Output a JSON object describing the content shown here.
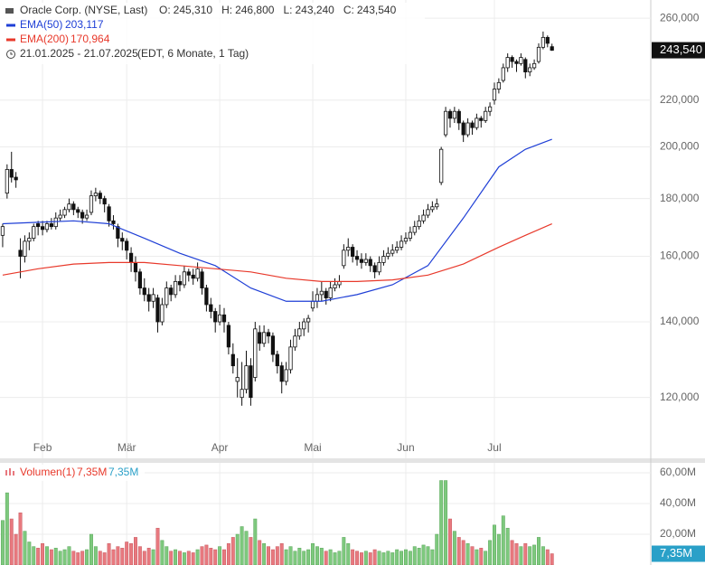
{
  "chart_data": {
    "type": "candlestick",
    "title": "Oracle Corp. (NYSE, Last)",
    "header_values": [
      {
        "key": "O:",
        "label": "245,310"
      },
      {
        "key": "H:",
        "label": "246,800"
      },
      {
        "key": "L:",
        "label": "243,240"
      },
      {
        "key": "C:",
        "label": "243,540"
      }
    ],
    "range": "21.01.2025 - 21.07.2025",
    "range_note": "(EDT, 6 Monate, 1 Tag)",
    "log_scale": true,
    "grid": true,
    "up_color": "#ffffff",
    "down_color": "#111111",
    "xlim": [
      -0.6,
      146.3
    ],
    "xticks": [
      {
        "value": 9,
        "label": "Feb"
      },
      {
        "value": 28,
        "label": "Mär"
      },
      {
        "value": 49,
        "label": "Apr"
      },
      {
        "value": 70,
        "label": "Mai"
      },
      {
        "value": 91,
        "label": "Jun"
      },
      {
        "value": 111,
        "label": "Jul"
      }
    ],
    "ylim": [
      106000,
      269800
    ],
    "yticks": [
      {
        "value": 120000,
        "label": "120,000"
      },
      {
        "value": 140000,
        "label": "140,000"
      },
      {
        "value": 160000,
        "label": "160,000"
      },
      {
        "value": 180000,
        "label": "180,000"
      },
      {
        "value": 200000,
        "label": "200,000"
      },
      {
        "value": 220000,
        "label": "220,000"
      },
      {
        "value": 260000,
        "label": "260,000"
      }
    ],
    "last_label": "243,540",
    "open": [
      167000,
      182000,
      191000,
      188000,
      162000,
      160000,
      165000,
      166000,
      171000,
      170000,
      169000,
      171000,
      170000,
      173000,
      174000,
      176000,
      178000,
      176000,
      175000,
      173000,
      175000,
      181000,
      182000,
      180000,
      177000,
      172000,
      170000,
      166000,
      165000,
      161000,
      158000,
      155000,
      150000,
      148000,
      146000,
      147000,
      140000,
      145000,
      150000,
      148000,
      152000,
      151000,
      155000,
      154000,
      153000,
      155000,
      150000,
      145000,
      143000,
      140000,
      142000,
      139000,
      131000,
      124000,
      120000,
      122000,
      128000,
      125000,
      137000,
      134000,
      137000,
      136000,
      131000,
      128000,
      124000,
      127000,
      133000,
      136000,
      138000,
      140000,
      144000,
      146000,
      148000,
      149000,
      147000,
      150000,
      151000,
      157000,
      162000,
      163000,
      160000,
      159000,
      158000,
      159000,
      157000,
      155000,
      158000,
      160000,
      161000,
      162000,
      163000,
      165000,
      166000,
      168000,
      170000,
      172000,
      174000,
      176000,
      177000,
      186000,
      205000,
      215000,
      212000,
      215000,
      210000,
      205000,
      210000,
      208000,
      212000,
      211000,
      215000,
      220000,
      225000,
      229000,
      235000,
      240000,
      238000,
      237000,
      239000,
      233000,
      235000,
      238000,
      245000,
      250000,
      245310
    ],
    "high": [
      171000,
      193000,
      198000,
      190000,
      166000,
      167000,
      168000,
      171000,
      172000,
      172000,
      172000,
      173000,
      175000,
      176000,
      177000,
      180000,
      179000,
      177000,
      176000,
      176000,
      183000,
      184000,
      183000,
      181000,
      178000,
      174000,
      171000,
      168000,
      166000,
      163000,
      160000,
      156000,
      153000,
      150000,
      150000,
      148000,
      147000,
      152000,
      151000,
      154000,
      154000,
      157000,
      156000,
      156000,
      158000,
      156000,
      151000,
      147000,
      144000,
      145000,
      144000,
      140000,
      134000,
      130000,
      129000,
      132000,
      130000,
      140000,
      139000,
      139000,
      138000,
      137000,
      132000,
      129000,
      129000,
      135000,
      138000,
      140000,
      141000,
      142000,
      149000,
      150000,
      152000,
      150000,
      152000,
      153000,
      154000,
      164000,
      166000,
      164000,
      162000,
      161000,
      161000,
      160000,
      158000,
      160000,
      162000,
      163000,
      164000,
      165000,
      167000,
      168000,
      170000,
      172000,
      174000,
      176000,
      178000,
      179000,
      180000,
      200000,
      217000,
      216000,
      217000,
      216000,
      211000,
      212000,
      211000,
      214000,
      213000,
      217000,
      219000,
      228000,
      230000,
      237000,
      242000,
      241000,
      239000,
      242000,
      240000,
      237000,
      239000,
      247000,
      253000,
      251000,
      246800
    ],
    "low": [
      163000,
      180000,
      186000,
      184000,
      153000,
      158000,
      162000,
      165000,
      167000,
      167000,
      168000,
      169000,
      169000,
      172000,
      173000,
      175000,
      174000,
      173000,
      171000,
      172000,
      174000,
      179000,
      178000,
      175000,
      170000,
      169000,
      163000,
      162000,
      159000,
      155000,
      152000,
      148000,
      146000,
      143000,
      144000,
      137000,
      139000,
      144000,
      146000,
      147000,
      149000,
      150000,
      152000,
      151000,
      152000,
      148000,
      143000,
      141000,
      137000,
      139000,
      137000,
      131000,
      126000,
      120000,
      118000,
      121000,
      118000,
      124000,
      132000,
      133000,
      134000,
      129000,
      126000,
      121000,
      123000,
      126000,
      132000,
      135000,
      136000,
      137000,
      143000,
      144000,
      146000,
      145000,
      146000,
      149000,
      150000,
      156000,
      160000,
      158000,
      157000,
      156000,
      157000,
      155000,
      153000,
      154000,
      157000,
      159000,
      160000,
      161000,
      162000,
      164000,
      165000,
      167000,
      169000,
      171000,
      173000,
      175000,
      176000,
      185000,
      204000,
      208000,
      210000,
      207000,
      202000,
      204000,
      205000,
      207000,
      208000,
      210000,
      213000,
      218000,
      223000,
      228000,
      233000,
      235000,
      233000,
      236000,
      230000,
      231000,
      234000,
      237000,
      244000,
      245000,
      243240
    ],
    "close": [
      170000,
      191000,
      188000,
      187000,
      160000,
      165000,
      166000,
      170000,
      170000,
      169000,
      171000,
      170000,
      173000,
      174000,
      176000,
      178000,
      176000,
      175000,
      173000,
      174000,
      181000,
      182000,
      180000,
      178000,
      172000,
      171000,
      166000,
      165000,
      162000,
      158000,
      155000,
      150000,
      148000,
      146000,
      148000,
      140000,
      145000,
      150000,
      148000,
      152000,
      151000,
      155000,
      154000,
      153000,
      156000,
      150000,
      145000,
      143000,
      140000,
      142000,
      140000,
      133000,
      128000,
      125000,
      122000,
      128000,
      120000,
      138000,
      134000,
      137000,
      136000,
      131000,
      128000,
      124000,
      127000,
      133000,
      136000,
      138000,
      140000,
      141000,
      146000,
      148000,
      149000,
      147000,
      150000,
      151000,
      152000,
      162000,
      163000,
      160000,
      159000,
      158000,
      159000,
      157000,
      155000,
      158000,
      160000,
      161000,
      162000,
      163000,
      165000,
      166000,
      168000,
      170000,
      172000,
      174000,
      176000,
      177000,
      178000,
      199000,
      215000,
      212000,
      215000,
      210000,
      205000,
      210000,
      208000,
      212000,
      211000,
      215000,
      217000,
      225000,
      228000,
      235000,
      240000,
      238000,
      237000,
      240000,
      233000,
      235000,
      237000,
      245000,
      250000,
      247000,
      243540
    ],
    "series": [
      {
        "name": "EMA(50)",
        "color": "#1f3fd6",
        "last_label": "203,117",
        "x": [
          0,
          8,
          16,
          24,
          32,
          40,
          48,
          56,
          64,
          72,
          80,
          88,
          96,
          104,
          112,
          118,
          124
        ],
        "values": [
          171000,
          171500,
          172000,
          171000,
          166000,
          161000,
          157000,
          150000,
          146000,
          146000,
          148000,
          151000,
          157000,
          173000,
          192000,
          199000,
          203117
        ]
      },
      {
        "name": "EMA(200)",
        "color": "#e8392b",
        "last_label": "170,964",
        "x": [
          0,
          8,
          16,
          24,
          32,
          40,
          48,
          56,
          64,
          72,
          80,
          88,
          96,
          104,
          112,
          118,
          124
        ],
        "values": [
          154000,
          156000,
          157500,
          158000,
          158000,
          157000,
          156000,
          155000,
          153000,
          152000,
          152000,
          152500,
          154000,
          157500,
          163000,
          167000,
          170964
        ]
      }
    ],
    "volume": {
      "name": "Volumen(1)",
      "last_label": "7,35M",
      "up_color": "#7ec97e",
      "down_color": "#e8797f",
      "ylim": [
        0,
        66500000
      ],
      "yticks": [
        {
          "value": 20000000,
          "label": "20,00M"
        },
        {
          "value": 40000000,
          "label": "40,00M"
        },
        {
          "value": 60000000,
          "label": "60,00M"
        }
      ],
      "values": [
        29000000,
        47000000,
        30000000,
        20000000,
        34000000,
        22000000,
        15000000,
        12000000,
        11000000,
        14000000,
        12000000,
        10000000,
        11000000,
        9000000,
        10000000,
        12000000,
        9000000,
        8000000,
        9000000,
        10000000,
        20000000,
        12000000,
        9000000,
        8000000,
        14000000,
        10000000,
        12000000,
        11000000,
        15000000,
        14000000,
        18000000,
        12000000,
        9000000,
        11000000,
        10000000,
        24000000,
        16000000,
        12000000,
        9000000,
        10000000,
        9000000,
        8000000,
        9000000,
        8000000,
        10000000,
        12000000,
        13000000,
        11000000,
        10000000,
        12000000,
        10000000,
        14000000,
        18000000,
        20000000,
        25000000,
        22000000,
        18000000,
        30000000,
        16000000,
        14000000,
        12000000,
        10000000,
        12000000,
        14000000,
        10000000,
        12000000,
        9000000,
        11000000,
        9000000,
        10000000,
        14000000,
        12000000,
        11000000,
        9000000,
        10000000,
        8000000,
        9000000,
        18000000,
        14000000,
        10000000,
        9000000,
        8000000,
        9000000,
        8000000,
        10000000,
        9000000,
        8000000,
        9000000,
        8000000,
        10000000,
        9000000,
        10000000,
        9000000,
        12000000,
        11000000,
        13000000,
        12000000,
        10000000,
        20000000,
        55000000,
        55000000,
        30000000,
        22000000,
        18000000,
        16000000,
        14000000,
        12000000,
        10000000,
        11000000,
        9000000,
        16000000,
        26000000,
        20000000,
        32000000,
        24000000,
        16000000,
        14000000,
        12000000,
        14000000,
        12000000,
        13000000,
        18000000,
        12000000,
        10000000,
        7350000
      ]
    }
  }
}
